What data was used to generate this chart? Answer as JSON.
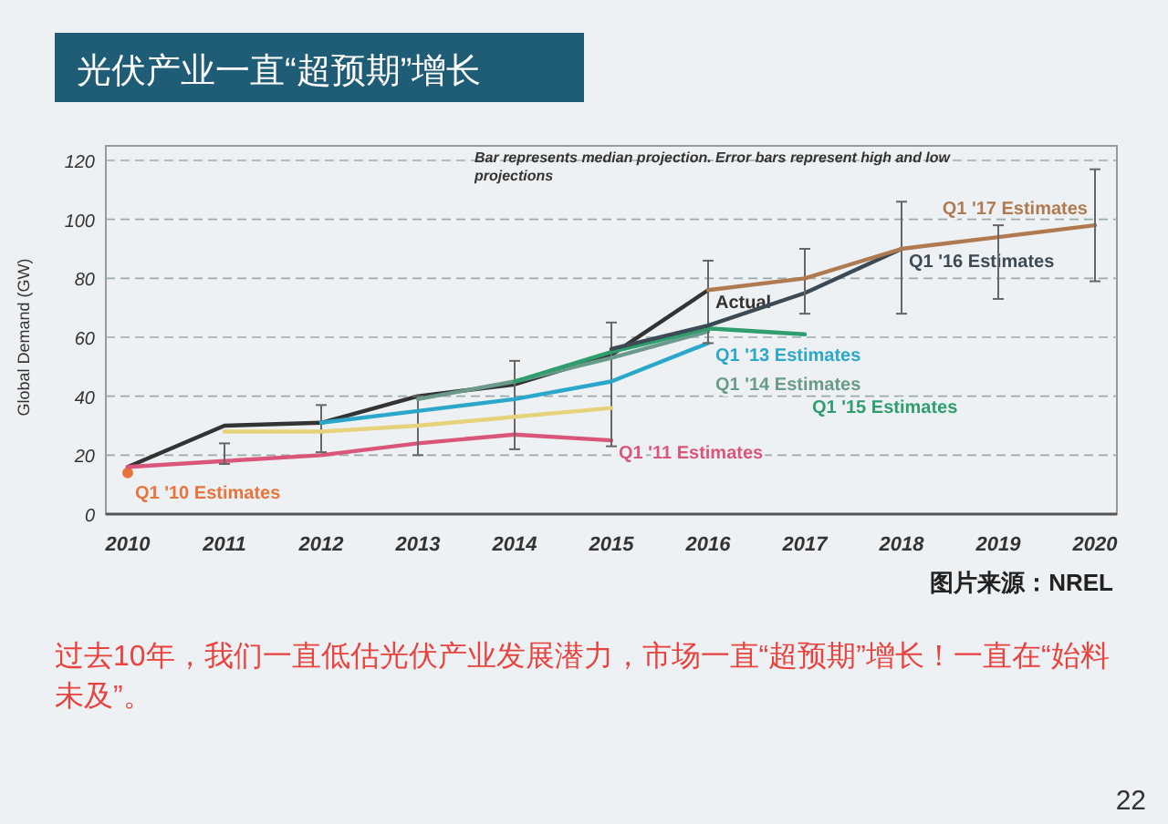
{
  "chart_data": {
    "type": "line",
    "title": "光伏产业一直“超预期”增长",
    "ylabel": "Global Demand (GW)",
    "categories": [
      "2010",
      "2011",
      "2012",
      "2013",
      "2014",
      "2015",
      "2016",
      "2017",
      "2018",
      "2019",
      "2020"
    ],
    "ylim": [
      0,
      120
    ],
    "yticks": [
      0,
      20,
      40,
      60,
      80,
      100,
      120
    ],
    "grid": "y",
    "line_style": "solid",
    "series": [
      {
        "name": "Actual",
        "color": "#333333",
        "values": [
          16,
          30,
          31,
          40,
          44,
          54,
          76,
          null,
          null,
          null,
          null
        ]
      },
      {
        "name": "Q1 '10 Estimates",
        "color": "#e8743b",
        "marker": "circle",
        "values": [
          14,
          null,
          null,
          null,
          null,
          null,
          null,
          null,
          null,
          null,
          null
        ]
      },
      {
        "name": "Q1 '11 Estimates",
        "color": "#d9557a",
        "values": [
          16,
          18,
          20,
          24,
          27,
          25,
          null,
          null,
          null,
          null,
          null
        ],
        "errors": [
          null,
          [
            17,
            24
          ],
          [
            21,
            37
          ],
          [
            20,
            40
          ],
          [
            22,
            52
          ],
          [
            23,
            65
          ],
          null,
          null,
          null,
          null,
          null
        ]
      },
      {
        "color": "#e6d27a",
        "values": [
          null,
          28,
          28,
          30,
          33,
          36,
          null,
          null,
          null,
          null,
          null
        ]
      },
      {
        "name": "Q1 '13 Estimates",
        "color": "#2aa7c9",
        "values": [
          null,
          null,
          31,
          35,
          39,
          45,
          58,
          null,
          null,
          null,
          null
        ]
      },
      {
        "name": "Q1 '14 Estimates",
        "color": "#6a9a8a",
        "values": [
          null,
          null,
          null,
          39,
          45,
          53,
          62,
          null,
          null,
          null,
          null
        ],
        "errors": [
          null,
          null,
          null,
          null,
          null,
          null,
          [
            58,
            86
          ],
          null,
          null,
          null,
          null
        ]
      },
      {
        "name": "Q1 '15 Estimates",
        "color": "#2e9e6e",
        "values": [
          null,
          null,
          null,
          null,
          45,
          55,
          63,
          61,
          null,
          null,
          null
        ]
      },
      {
        "name": "Q1 '16 Estimates",
        "color": "#3b4a55",
        "values": [
          null,
          null,
          null,
          null,
          null,
          56,
          64,
          75,
          90,
          null,
          null
        ],
        "errors": [
          null,
          null,
          null,
          null,
          null,
          null,
          null,
          [
            68,
            90
          ],
          [
            68,
            106
          ],
          null,
          null
        ]
      },
      {
        "name": "Q1 '17 Estimates",
        "color": "#b07a50",
        "values": [
          null,
          null,
          null,
          null,
          null,
          null,
          76,
          80,
          90,
          94,
          98
        ],
        "errors": [
          null,
          null,
          null,
          null,
          null,
          null,
          null,
          null,
          null,
          [
            73,
            98
          ],
          [
            79,
            117
          ]
        ]
      }
    ],
    "annotations": [
      "Bar represents median projection. Error bars represent high and low projections",
      "图片来源：NREL",
      "过去10年，我们一直低估光伏产业发展潜力，市场一直“超预期”增长！一直在“始料未及”。",
      "22"
    ]
  }
}
